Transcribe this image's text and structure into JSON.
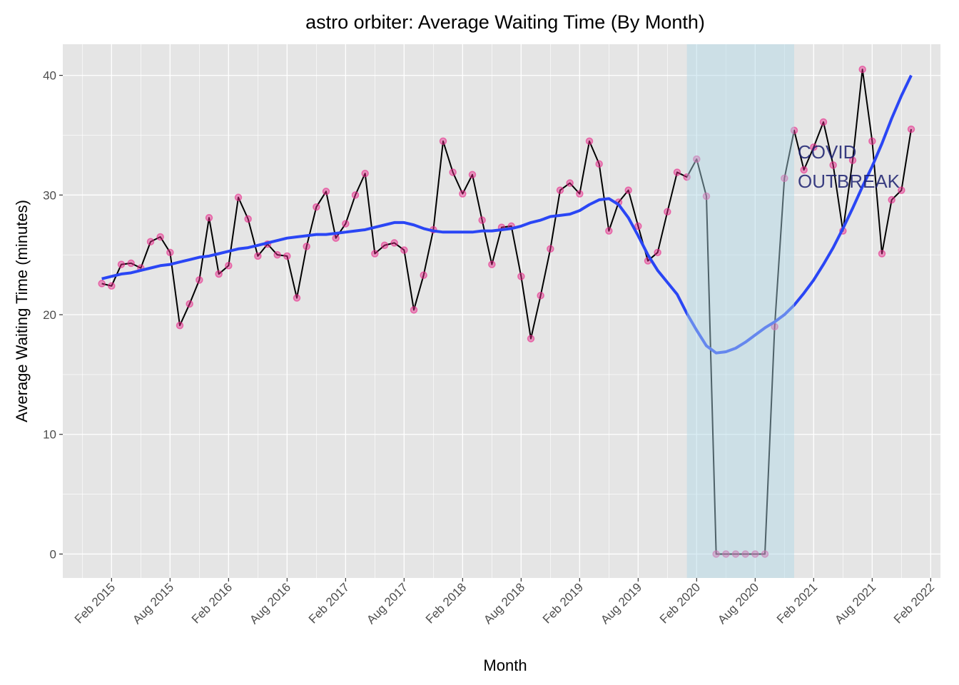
{
  "chart_data": {
    "type": "line",
    "title": "astro orbiter: Average Waiting Time (By Month)",
    "x_label": "Month",
    "y_label": "Average Waiting Time (minutes)",
    "x": [
      "2015-01",
      "2015-02",
      "2015-03",
      "2015-04",
      "2015-05",
      "2015-06",
      "2015-07",
      "2015-08",
      "2015-09",
      "2015-10",
      "2015-11",
      "2015-12",
      "2016-01",
      "2016-02",
      "2016-03",
      "2016-04",
      "2016-05",
      "2016-06",
      "2016-07",
      "2016-08",
      "2016-09",
      "2016-10",
      "2016-11",
      "2016-12",
      "2017-01",
      "2017-02",
      "2017-03",
      "2017-04",
      "2017-05",
      "2017-06",
      "2017-07",
      "2017-08",
      "2017-09",
      "2017-10",
      "2017-11",
      "2017-12",
      "2018-01",
      "2018-02",
      "2018-03",
      "2018-04",
      "2018-05",
      "2018-06",
      "2018-07",
      "2018-08",
      "2018-09",
      "2018-10",
      "2018-11",
      "2018-12",
      "2019-01",
      "2019-02",
      "2019-03",
      "2019-04",
      "2019-05",
      "2019-06",
      "2019-07",
      "2019-08",
      "2019-09",
      "2019-10",
      "2019-11",
      "2019-12",
      "2020-01",
      "2020-02",
      "2020-03",
      "2020-04",
      "2020-05",
      "2020-06",
      "2020-07",
      "2020-08",
      "2020-09",
      "2020-10",
      "2020-11",
      "2020-12",
      "2021-01",
      "2021-02",
      "2021-03",
      "2021-04",
      "2021-05",
      "2021-06",
      "2021-07",
      "2021-08",
      "2021-09",
      "2021-10",
      "2021-11",
      "2021-12"
    ],
    "series": [
      {
        "color": "#000000",
        "point_color": "#e7298a",
        "values": [
          22.6,
          22.4,
          24.2,
          24.3,
          23.9,
          26.1,
          26.5,
          25.2,
          19.1,
          20.9,
          22.9,
          28.1,
          23.4,
          24.1,
          29.8,
          28.0,
          24.9,
          25.9,
          25.0,
          24.9,
          21.4,
          25.7,
          29.0,
          30.3,
          26.4,
          27.6,
          30.0,
          31.8,
          25.1,
          25.8,
          26.0,
          25.4,
          20.4,
          23.3,
          27.1,
          34.5,
          31.9,
          30.1,
          31.7,
          27.9,
          24.2,
          27.3,
          27.4,
          23.2,
          18.0,
          21.6,
          25.5,
          30.4,
          31.0,
          30.1,
          34.5,
          32.6,
          27.0,
          29.4,
          30.4,
          27.4,
          24.5,
          25.2,
          28.6,
          31.9,
          31.5,
          33.0,
          29.9,
          0,
          0,
          0,
          0,
          0,
          0,
          19.0,
          31.4,
          35.4,
          32.1,
          34.0,
          36.1,
          32.5,
          27.0,
          32.9,
          40.5,
          34.5,
          25.1,
          29.6,
          30.4,
          35.5
        ]
      },
      {
        "color": "#2a46f5",
        "smooth": true,
        "values": [
          23.0,
          23.2,
          23.4,
          23.5,
          23.7,
          23.9,
          24.1,
          24.2,
          24.4,
          24.6,
          24.8,
          24.9,
          25.1,
          25.3,
          25.5,
          25.6,
          25.8,
          26.0,
          26.2,
          26.4,
          26.5,
          26.6,
          26.7,
          26.7,
          26.8,
          26.9,
          27.0,
          27.1,
          27.3,
          27.5,
          27.7,
          27.7,
          27.5,
          27.2,
          27.0,
          26.9,
          26.9,
          26.9,
          26.9,
          27.0,
          27.0,
          27.1,
          27.2,
          27.4,
          27.7,
          27.9,
          28.2,
          28.3,
          28.4,
          28.7,
          29.2,
          29.6,
          29.7,
          29.2,
          28.1,
          26.6,
          25.0,
          23.7,
          22.7,
          21.7,
          20.1,
          18.7,
          17.4,
          16.8,
          16.9,
          17.2,
          17.7,
          18.3,
          18.9,
          19.4,
          20.0,
          20.8,
          21.8,
          22.9,
          24.2,
          25.6,
          27.2,
          28.9,
          30.7,
          32.4,
          34.3,
          36.4,
          38.3,
          40.0
        ]
      }
    ],
    "highlight": {
      "from": "2020-01",
      "to": "2020-12",
      "color": "#add8e6",
      "label": [
        "COVID",
        "OUTBREAK"
      ],
      "label_color": "#1a1f6e"
    },
    "xlim": [
      "2014-09",
      "2022-03"
    ],
    "xticks": [
      {
        "value": "2015-02",
        "label": "Feb 2015"
      },
      {
        "value": "2015-08",
        "label": "Aug 2015"
      },
      {
        "value": "2016-02",
        "label": "Feb 2016"
      },
      {
        "value": "2016-08",
        "label": "Aug 2016"
      },
      {
        "value": "2017-02",
        "label": "Feb 2017"
      },
      {
        "value": "2017-08",
        "label": "Aug 2017"
      },
      {
        "value": "2018-02",
        "label": "Feb 2018"
      },
      {
        "value": "2018-08",
        "label": "Aug 2018"
      },
      {
        "value": "2019-02",
        "label": "Feb 2019"
      },
      {
        "value": "2019-08",
        "label": "Aug 2019"
      },
      {
        "value": "2020-02",
        "label": "Feb 2020"
      },
      {
        "value": "2020-08",
        "label": "Aug 2020"
      },
      {
        "value": "2021-02",
        "label": "Feb 2021"
      },
      {
        "value": "2021-08",
        "label": "Aug 2021"
      },
      {
        "value": "2022-02",
        "label": "Feb 2022"
      }
    ],
    "ylim": [
      -2,
      42.6
    ],
    "yticks": [
      0,
      10,
      20,
      30,
      40
    ],
    "grid": true
  }
}
